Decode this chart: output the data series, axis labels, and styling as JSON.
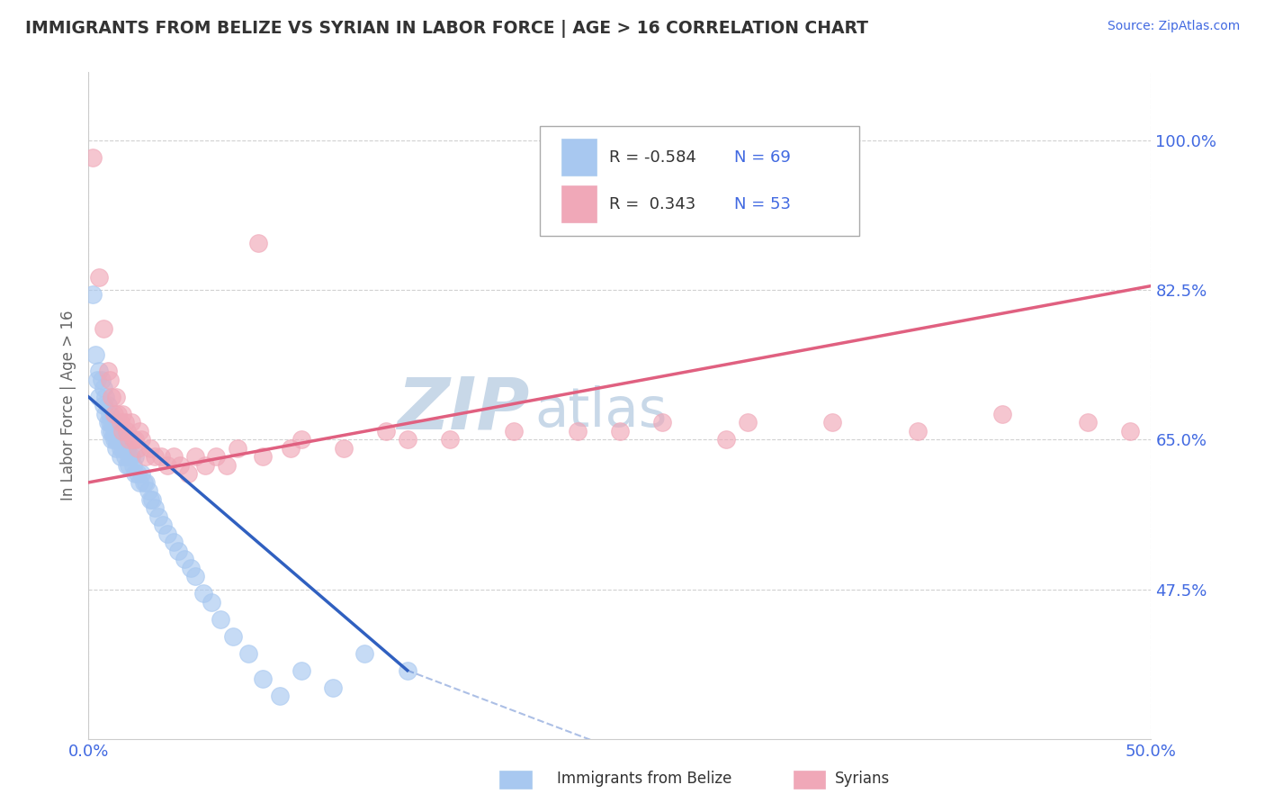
{
  "title": "IMMIGRANTS FROM BELIZE VS SYRIAN IN LABOR FORCE | AGE > 16 CORRELATION CHART",
  "source": "Source: ZipAtlas.com",
  "ylabel": "In Labor Force | Age > 16",
  "xlim": [
    0.0,
    0.5
  ],
  "ylim": [
    0.3,
    1.08
  ],
  "ytick_vals": [
    0.475,
    0.65,
    0.825,
    1.0
  ],
  "xtick_vals": [
    0.0,
    0.5
  ],
  "legend_r1": "R = -0.584",
  "legend_n1": "N = 69",
  "legend_r2": "R =  0.343",
  "legend_n2": "N = 53",
  "color_belize": "#a8c8f0",
  "color_syrian": "#f0a8b8",
  "line_color_belize": "#3060c0",
  "line_color_syrian": "#e06080",
  "watermark_zip": "ZIP",
  "watermark_atlas": "atlas",
  "watermark_color": "#c8d8e8",
  "background_color": "#ffffff",
  "grid_color": "#cccccc",
  "belize_x": [
    0.002,
    0.003,
    0.004,
    0.005,
    0.005,
    0.006,
    0.007,
    0.007,
    0.008,
    0.008,
    0.009,
    0.009,
    0.01,
    0.01,
    0.01,
    0.011,
    0.011,
    0.011,
    0.012,
    0.012,
    0.012,
    0.013,
    0.013,
    0.013,
    0.014,
    0.014,
    0.015,
    0.015,
    0.015,
    0.016,
    0.016,
    0.017,
    0.017,
    0.018,
    0.018,
    0.019,
    0.019,
    0.02,
    0.021,
    0.022,
    0.022,
    0.023,
    0.024,
    0.025,
    0.026,
    0.027,
    0.028,
    0.029,
    0.03,
    0.031,
    0.033,
    0.035,
    0.037,
    0.04,
    0.042,
    0.045,
    0.048,
    0.05,
    0.054,
    0.058,
    0.062,
    0.068,
    0.075,
    0.082,
    0.09,
    0.1,
    0.115,
    0.13,
    0.15
  ],
  "belize_y": [
    0.82,
    0.75,
    0.72,
    0.73,
    0.7,
    0.72,
    0.71,
    0.69,
    0.7,
    0.68,
    0.69,
    0.67,
    0.68,
    0.67,
    0.66,
    0.67,
    0.66,
    0.65,
    0.67,
    0.66,
    0.65,
    0.66,
    0.65,
    0.64,
    0.66,
    0.65,
    0.65,
    0.64,
    0.63,
    0.65,
    0.64,
    0.64,
    0.63,
    0.64,
    0.62,
    0.63,
    0.62,
    0.63,
    0.62,
    0.63,
    0.61,
    0.61,
    0.6,
    0.61,
    0.6,
    0.6,
    0.59,
    0.58,
    0.58,
    0.57,
    0.56,
    0.55,
    0.54,
    0.53,
    0.52,
    0.51,
    0.5,
    0.49,
    0.47,
    0.46,
    0.44,
    0.42,
    0.4,
    0.37,
    0.35,
    0.38,
    0.36,
    0.4,
    0.38
  ],
  "syrian_x": [
    0.002,
    0.005,
    0.007,
    0.009,
    0.01,
    0.011,
    0.012,
    0.013,
    0.014,
    0.015,
    0.016,
    0.016,
    0.017,
    0.018,
    0.019,
    0.02,
    0.021,
    0.022,
    0.023,
    0.024,
    0.025,
    0.027,
    0.029,
    0.031,
    0.034,
    0.037,
    0.04,
    0.043,
    0.047,
    0.05,
    0.055,
    0.06,
    0.065,
    0.07,
    0.08,
    0.1,
    0.12,
    0.14,
    0.17,
    0.2,
    0.23,
    0.27,
    0.31,
    0.35,
    0.39,
    0.43,
    0.47,
    0.49,
    0.082,
    0.095,
    0.15,
    0.25,
    0.3
  ],
  "syrian_y": [
    0.98,
    0.84,
    0.78,
    0.73,
    0.72,
    0.7,
    0.68,
    0.7,
    0.68,
    0.67,
    0.68,
    0.66,
    0.67,
    0.66,
    0.65,
    0.67,
    0.65,
    0.65,
    0.64,
    0.66,
    0.65,
    0.63,
    0.64,
    0.63,
    0.63,
    0.62,
    0.63,
    0.62,
    0.61,
    0.63,
    0.62,
    0.63,
    0.62,
    0.64,
    0.88,
    0.65,
    0.64,
    0.66,
    0.65,
    0.66,
    0.66,
    0.67,
    0.67,
    0.67,
    0.66,
    0.68,
    0.67,
    0.66,
    0.63,
    0.64,
    0.65,
    0.66,
    0.65
  ],
  "belize_line": [
    0.0,
    0.15,
    0.7,
    0.38
  ],
  "belize_dash": [
    0.15,
    0.5,
    0.38,
    0.05
  ],
  "syrian_line": [
    0.0,
    0.5,
    0.6,
    0.83
  ]
}
